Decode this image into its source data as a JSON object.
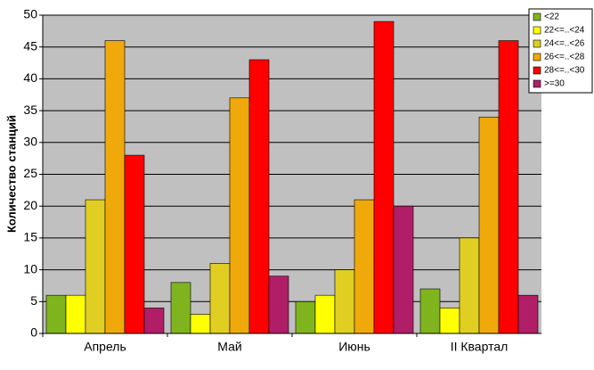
{
  "chart_data": {
    "type": "bar",
    "y_label": "Количество станций",
    "categories": [
      "Апрель",
      "Май",
      "Июнь",
      "II Квартал"
    ],
    "series": [
      {
        "name": "<22",
        "color": "#80b41e",
        "values": [
          6,
          8,
          5,
          7
        ]
      },
      {
        "name": "22<=..<24",
        "color": "#ffff00",
        "values": [
          6,
          3,
          6,
          4
        ]
      },
      {
        "name": "24<=..<26",
        "color": "#e0cf22",
        "values": [
          21,
          11,
          10,
          15
        ]
      },
      {
        "name": "26<=..<28",
        "color": "#f0a90a",
        "values": [
          46,
          37,
          21,
          34
        ]
      },
      {
        "name": "28<=..<30",
        "color": "#ff0000",
        "values": [
          28,
          43,
          49,
          46
        ]
      },
      {
        "name": ">=30",
        "color": "#b01e68",
        "values": [
          4,
          9,
          20,
          6
        ]
      }
    ],
    "ylim": [
      0,
      50
    ],
    "yticks": [
      0,
      5,
      10,
      15,
      20,
      25,
      30,
      35,
      40,
      45,
      50
    ],
    "grid": true,
    "legend": "top-right",
    "background": "#c0c0c0"
  }
}
